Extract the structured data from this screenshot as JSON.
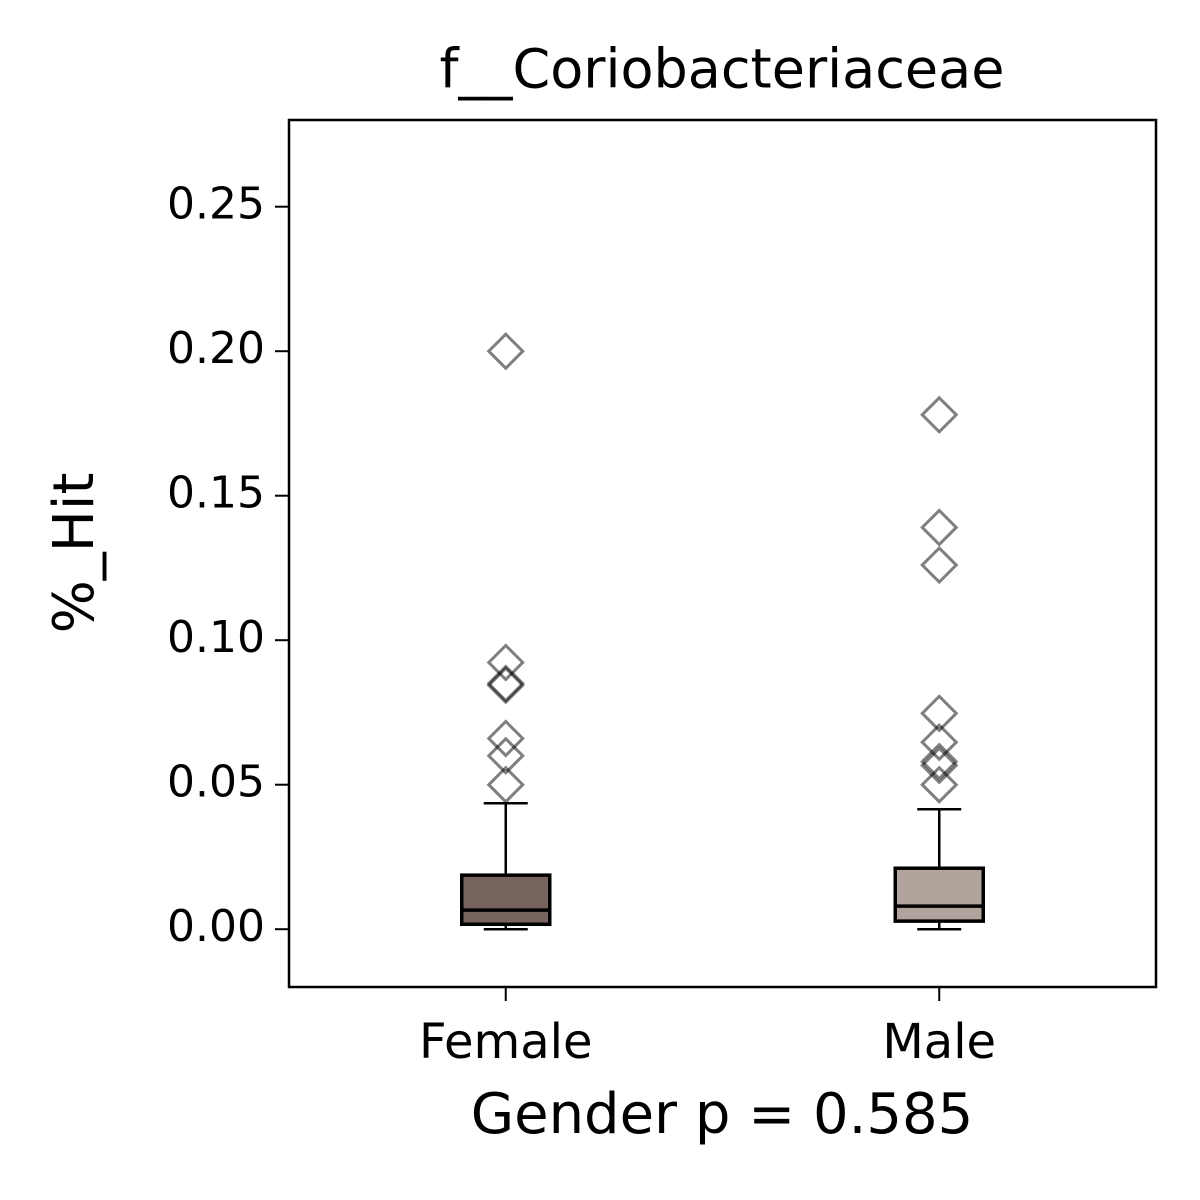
{
  "chart_data": {
    "type": "box",
    "title": "f__Coriobacteriaceae",
    "x_label": "Gender p = 0.585",
    "y_label": "%_Hit",
    "categories": [
      "Female",
      "Male"
    ],
    "boxes": [
      {
        "color": "#76635e",
        "whislo": 0.0,
        "q1": 0.0017,
        "med": 0.0066,
        "q3": 0.0187,
        "whishi": 0.0436,
        "fliers": [
          0.2,
          0.0923,
          0.085,
          0.0844,
          0.066,
          0.06,
          0.05
        ]
      },
      {
        "color": "#b0a49c",
        "whislo": 0.0,
        "q1": 0.0028,
        "med": 0.008,
        "q3": 0.0211,
        "whishi": 0.0415,
        "fliers": [
          0.178,
          0.139,
          0.126,
          0.0747,
          0.0647,
          0.058,
          0.0567,
          0.05
        ]
      }
    ],
    "ylim": [
      -0.02,
      0.28
    ],
    "yticks": [
      {
        "value": 0,
        "label": "0.00"
      },
      {
        "value": 0.05,
        "label": "0.05"
      },
      {
        "value": 0.1,
        "label": "0.10"
      },
      {
        "value": 0.15,
        "label": "0.15"
      },
      {
        "value": 0.2,
        "label": "0.20"
      },
      {
        "value": 0.25,
        "label": "0.25"
      }
    ]
  }
}
